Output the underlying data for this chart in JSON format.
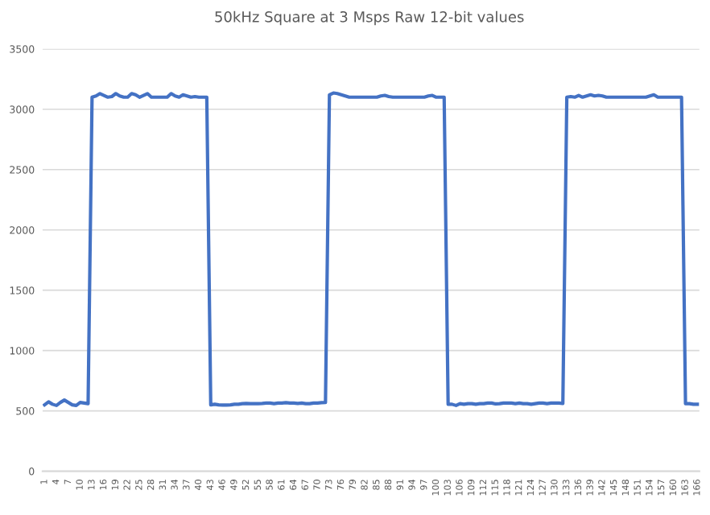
{
  "chart_data": {
    "type": "line",
    "title": "50kHz Square at 3 Msps Raw 12-bit values",
    "categories": [
      "1",
      null,
      null,
      "4",
      null,
      null,
      "7",
      null,
      null,
      "10",
      null,
      null,
      "13",
      null,
      null,
      "16",
      null,
      null,
      "19",
      null,
      null,
      "22",
      null,
      null,
      "25",
      null,
      null,
      "28",
      null,
      null,
      "31",
      null,
      null,
      "34",
      null,
      null,
      "37",
      null,
      null,
      "40",
      null,
      null,
      "43",
      null,
      null,
      "46",
      null,
      null,
      "49",
      null,
      null,
      "52",
      null,
      null,
      "55",
      null,
      null,
      "58",
      null,
      null,
      "61",
      null,
      null,
      "64",
      null,
      null,
      "67",
      null,
      null,
      "70",
      null,
      null,
      "73",
      null,
      null,
      "76",
      null,
      null,
      "79",
      null,
      null,
      "82",
      null,
      null,
      "85",
      null,
      null,
      "88",
      null,
      null,
      "91",
      null,
      null,
      "94",
      null,
      null,
      "97",
      null,
      null,
      "100",
      null,
      null,
      "103",
      null,
      null,
      "106",
      null,
      null,
      "109",
      null,
      null,
      "112",
      null,
      null,
      "115",
      null,
      null,
      "118",
      null,
      null,
      "121",
      null,
      null,
      "124",
      null,
      null,
      "127",
      null,
      null,
      "130",
      null,
      null,
      "133",
      null,
      null,
      "136",
      null,
      null,
      "139",
      null,
      null,
      "142",
      null,
      null,
      "145",
      null,
      null,
      "148",
      null,
      null,
      "151",
      null,
      null,
      "154",
      null,
      null,
      "157",
      null,
      null,
      "160",
      null,
      null,
      "163",
      null,
      null,
      "166"
    ],
    "series": [
      {
        "color": "#4472c4",
        "values": [
          550,
          575,
          555,
          545,
          570,
          590,
          570,
          550,
          545,
          570,
          565,
          560,
          3100,
          3110,
          3130,
          3115,
          3100,
          3105,
          3130,
          3110,
          3100,
          3100,
          3130,
          3120,
          3100,
          3115,
          3130,
          3100,
          3100,
          3100,
          3100,
          3100,
          3130,
          3110,
          3100,
          3120,
          3110,
          3100,
          3105,
          3100,
          3100,
          3100,
          550,
          555,
          550,
          548,
          548,
          550,
          555,
          555,
          560,
          562,
          560,
          560,
          560,
          562,
          565,
          565,
          560,
          565,
          565,
          568,
          565,
          565,
          562,
          565,
          560,
          560,
          565,
          565,
          568,
          570,
          3120,
          3135,
          3130,
          3120,
          3110,
          3100,
          3100,
          3100,
          3100,
          3100,
          3100,
          3100,
          3100,
          3110,
          3115,
          3105,
          3100,
          3100,
          3100,
          3100,
          3100,
          3100,
          3100,
          3100,
          3100,
          3110,
          3115,
          3100,
          3100,
          3100,
          555,
          555,
          545,
          560,
          555,
          560,
          560,
          555,
          560,
          560,
          565,
          565,
          558,
          560,
          565,
          565,
          565,
          560,
          565,
          560,
          560,
          555,
          560,
          565,
          565,
          560,
          565,
          565,
          565,
          562,
          3100,
          3105,
          3100,
          3115,
          3100,
          3110,
          3120,
          3110,
          3115,
          3110,
          3100,
          3100,
          3100,
          3100,
          3100,
          3100,
          3100,
          3100,
          3100,
          3100,
          3100,
          3110,
          3120,
          3100,
          3100,
          3100,
          3100,
          3100,
          3100,
          3100,
          560,
          560,
          555,
          555
        ]
      }
    ],
    "ylim": [
      0,
      3500
    ],
    "yticks": [
      0,
      500,
      1000,
      1500,
      2000,
      2500,
      3000,
      3500
    ],
    "grid": "y",
    "marker": "none",
    "line_style": "solid"
  }
}
